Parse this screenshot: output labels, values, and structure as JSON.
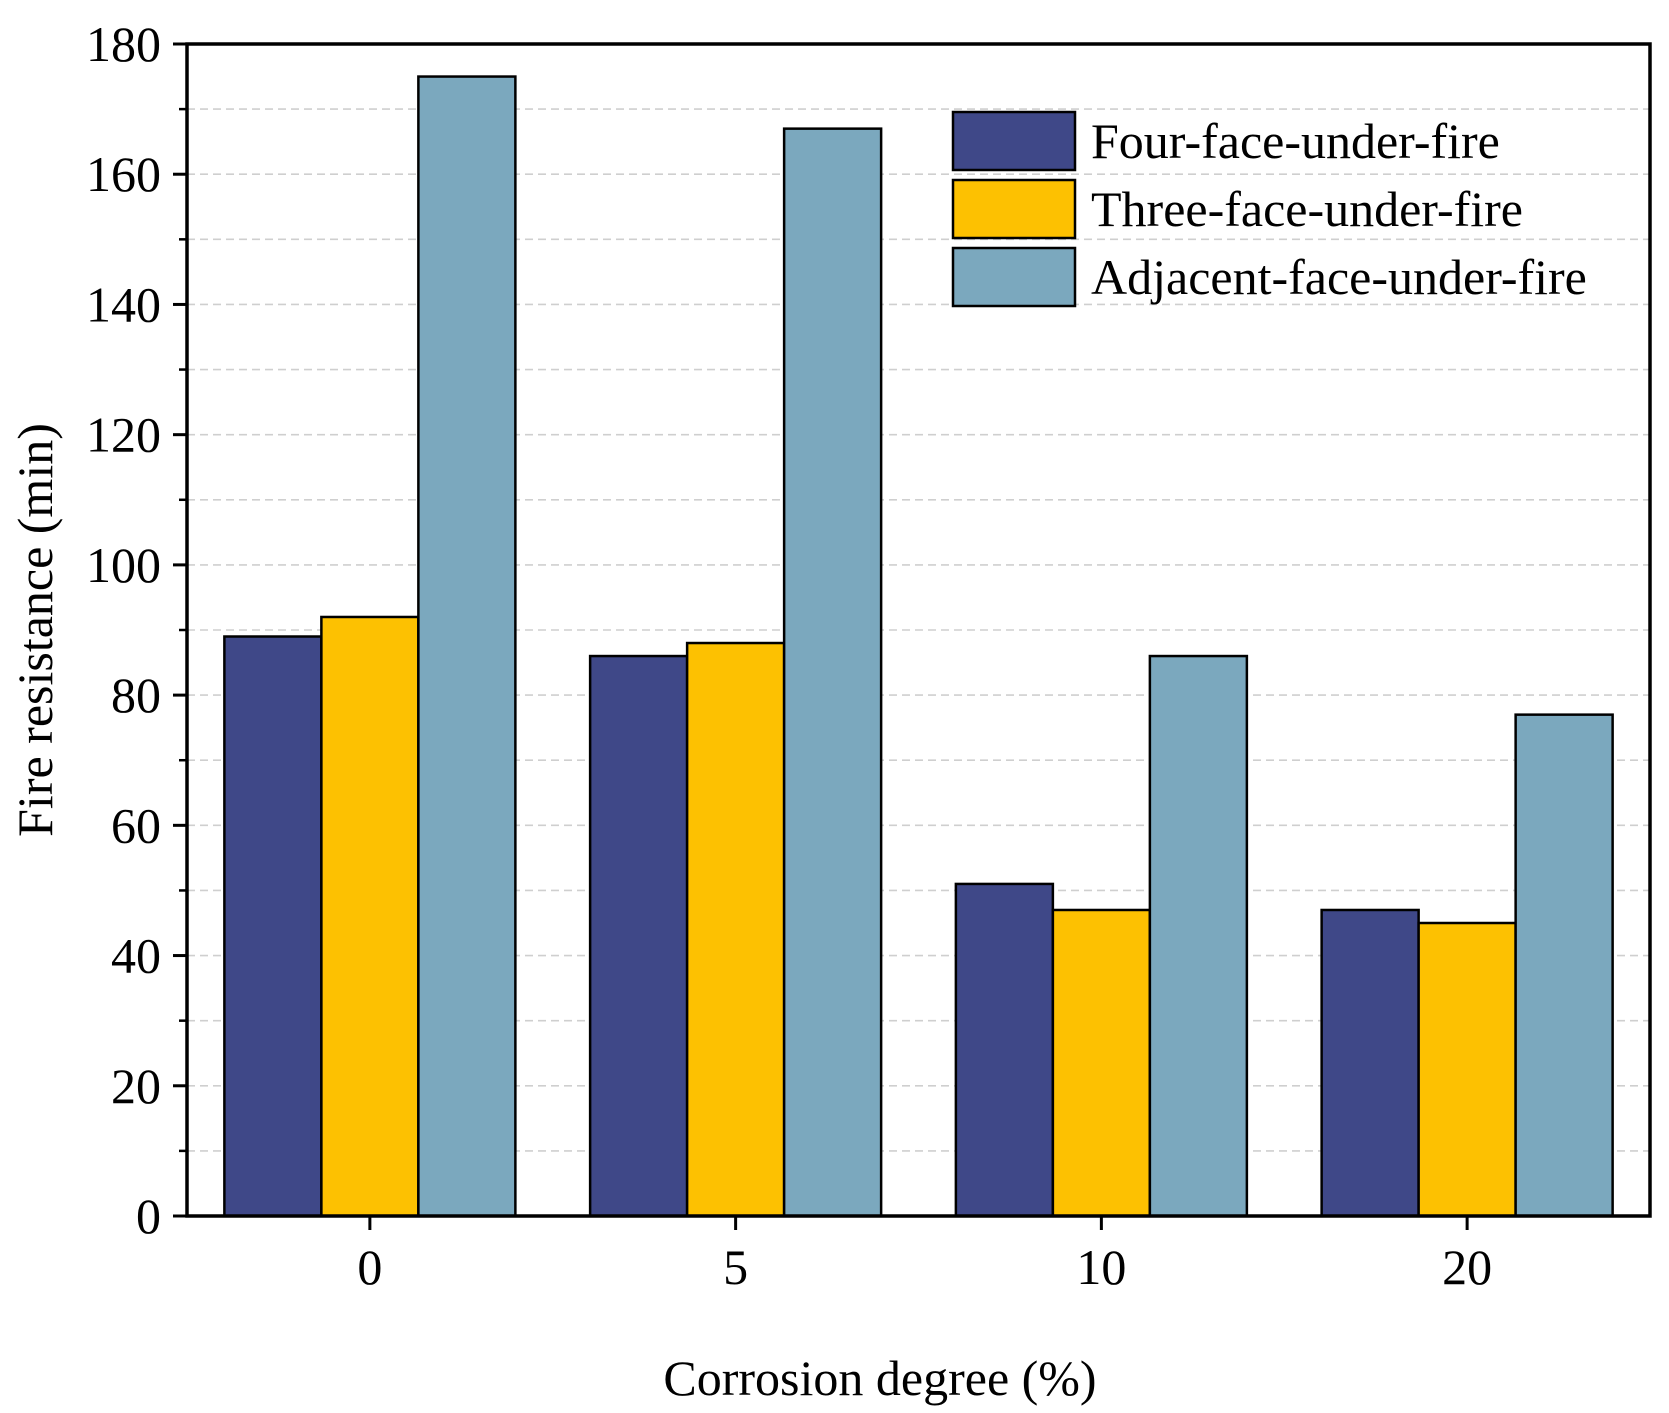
{
  "chart_data": {
    "type": "bar",
    "title": "",
    "xlabel": "Corrosion degree (%)",
    "ylabel": "Fire resistance (min)",
    "categories": [
      "0",
      "5",
      "10",
      "20"
    ],
    "ylim": [
      0,
      180
    ],
    "yticks": [
      "0",
      "20",
      "40",
      "60",
      "80",
      "100",
      "120",
      "140",
      "160",
      "180"
    ],
    "grid": "horizontal dashed at 10-unit intervals",
    "legend_position": "top-right",
    "series": [
      {
        "name": "Four-face-under-fire",
        "color": "#3f4888",
        "values": [
          89,
          86,
          51,
          47
        ]
      },
      {
        "name": "Three-face-under-fire",
        "color": "#fdc101",
        "values": [
          92,
          88,
          47,
          45
        ]
      },
      {
        "name": "Adjacent-face-under-fire",
        "color": "#7ba8be",
        "values": [
          175,
          167,
          86,
          77
        ]
      }
    ]
  }
}
